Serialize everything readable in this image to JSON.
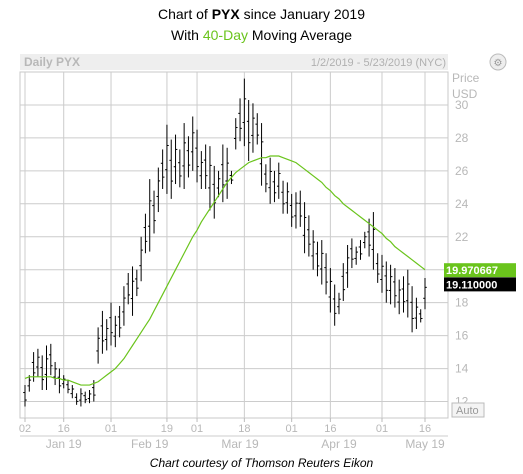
{
  "header": {
    "title_prefix": "Chart of ",
    "title_ticker": "PYX",
    "title_suffix": " since January 2019",
    "subtitle_prefix": "With ",
    "subtitle_highlight": "40-Day",
    "subtitle_suffix": " Moving Average"
  },
  "panel": {
    "label": "Daily PYX",
    "date_range": "1/2/2019 - 5/23/2019 (NYC)",
    "price_label": "Price",
    "currency_label": "USD",
    "auto_label": "Auto"
  },
  "footer": {
    "credit": "Chart courtesy of Thomson Reuters Eikon"
  },
  "colors": {
    "price_bars": "#000000",
    "moving_average": "#6ac41c",
    "ma_tag": "#6ac41c",
    "price_tag": "#000000",
    "grid": "#cccccc"
  },
  "chart_data": {
    "type": "ohlc",
    "ylim": [
      11,
      32
    ],
    "y_ticks": [
      12,
      14,
      16,
      18,
      20,
      22,
      24,
      26,
      28,
      30
    ],
    "x_tick_labels": [
      "02",
      "16",
      "01",
      "19",
      "01",
      "18",
      "01",
      "16",
      "01",
      "16"
    ],
    "x_tick_index": [
      0,
      9,
      20,
      33,
      40,
      51,
      62,
      71,
      83,
      93
    ],
    "month_labels": [
      {
        "label": "Jan 19",
        "index": 9
      },
      {
        "label": "Feb 19",
        "index": 29
      },
      {
        "label": "Mar 19",
        "index": 50
      },
      {
        "label": "Apr 19",
        "index": 73
      },
      {
        "label": "May 19",
        "index": 93
      }
    ],
    "last_ma_value": "19.970667",
    "last_price_value": "19.110000",
    "series": [
      {
        "name": "PYX",
        "style": "ohlc",
        "high": [
          13.0,
          13.6,
          15.0,
          15.2,
          14.8,
          15.4,
          15.5,
          14.4,
          14.0,
          13.6,
          13.3,
          13.0,
          12.5,
          12.8,
          12.6,
          12.7,
          13.3,
          16.5,
          17.5,
          17.0,
          18.0,
          17.2,
          17.8,
          19.0,
          19.8,
          20.2,
          20.0,
          22.0,
          23.4,
          25.5,
          24.8,
          26.2,
          27.3,
          28.8,
          27.9,
          28.2,
          27.3,
          28.9,
          28.1,
          29.3,
          28.5,
          27.2,
          27.6,
          27.5,
          26.3,
          26.0,
          27.6,
          27.4,
          26.0,
          29.2,
          30.4,
          31.6,
          30.3,
          30.1,
          29.5,
          28.9,
          26.4,
          26.8,
          26.0,
          26.5,
          25.4,
          25.3,
          24.6,
          24.7,
          24.8,
          24.1,
          23.3,
          22.4,
          21.7,
          21.8,
          21.0,
          20.1,
          19.1,
          18.6,
          20.4,
          21.5,
          21.9,
          21.4,
          21.8,
          22.3,
          23.1,
          23.5,
          21.0,
          20.9,
          20.5,
          20.3,
          20.1,
          19.4,
          19.6,
          20.0,
          19.0,
          18.3,
          17.6,
          19.5
        ],
        "low": [
          11.7,
          12.6,
          13.2,
          13.5,
          12.7,
          12.7,
          13.6,
          13.0,
          12.5,
          12.8,
          12.5,
          12.2,
          11.8,
          11.7,
          11.9,
          11.9,
          12.0,
          14.3,
          14.9,
          15.1,
          15.4,
          15.3,
          15.9,
          16.6,
          17.9,
          17.2,
          18.4,
          19.3,
          21.0,
          21.1,
          22.2,
          23.5,
          24.9,
          24.6,
          24.3,
          25.2,
          25.0,
          24.9,
          25.6,
          26.0,
          25.3,
          24.9,
          24.9,
          23.6,
          23.1,
          24.4,
          24.1,
          24.3,
          25.2,
          27.3,
          27.8,
          27.5,
          26.6,
          27.1,
          27.6,
          25.1,
          24.7,
          24.0,
          24.1,
          24.3,
          23.4,
          23.4,
          22.6,
          22.5,
          22.6,
          21.0,
          20.8,
          20.0,
          19.6,
          19.1,
          18.5,
          17.4,
          16.6,
          17.3,
          18.1,
          18.9,
          20.1,
          20.3,
          20.6,
          21.3,
          20.8,
          20.0,
          19.2,
          18.6,
          18.0,
          17.9,
          17.7,
          17.3,
          17.4,
          17.1,
          16.2,
          16.4,
          16.8,
          17.6
        ]
      },
      {
        "name": "40-Day",
        "style": "line",
        "start_index": 0,
        "values": [
          13.4,
          13.5,
          13.5,
          13.5,
          13.5,
          13.5,
          13.5,
          13.4,
          13.4,
          13.3,
          13.3,
          13.2,
          13.1,
          13.0,
          13.0,
          13.0,
          13.1,
          13.2,
          13.4,
          13.6,
          13.8,
          14.0,
          14.3,
          14.6,
          15.0,
          15.4,
          15.8,
          16.2,
          16.6,
          17.0,
          17.5,
          18.0,
          18.5,
          19.0,
          19.5,
          20.0,
          20.5,
          21.0,
          21.5,
          22.0,
          22.4,
          22.9,
          23.3,
          23.7,
          24.1,
          24.5,
          24.9,
          25.3,
          25.6,
          25.9,
          26.1,
          26.3,
          26.5,
          26.6,
          26.7,
          26.8,
          26.8,
          26.9,
          26.9,
          26.9,
          26.8,
          26.7,
          26.6,
          26.5,
          26.3,
          26.1,
          25.9,
          25.7,
          25.5,
          25.3,
          25.0,
          24.8,
          24.5,
          24.3,
          24.0,
          23.8,
          23.6,
          23.4,
          23.2,
          23.0,
          22.8,
          22.6,
          22.4,
          22.2,
          21.9,
          21.7,
          21.4,
          21.2,
          21.0,
          20.8,
          20.6,
          20.4,
          20.2,
          20.0
        ]
      }
    ]
  }
}
